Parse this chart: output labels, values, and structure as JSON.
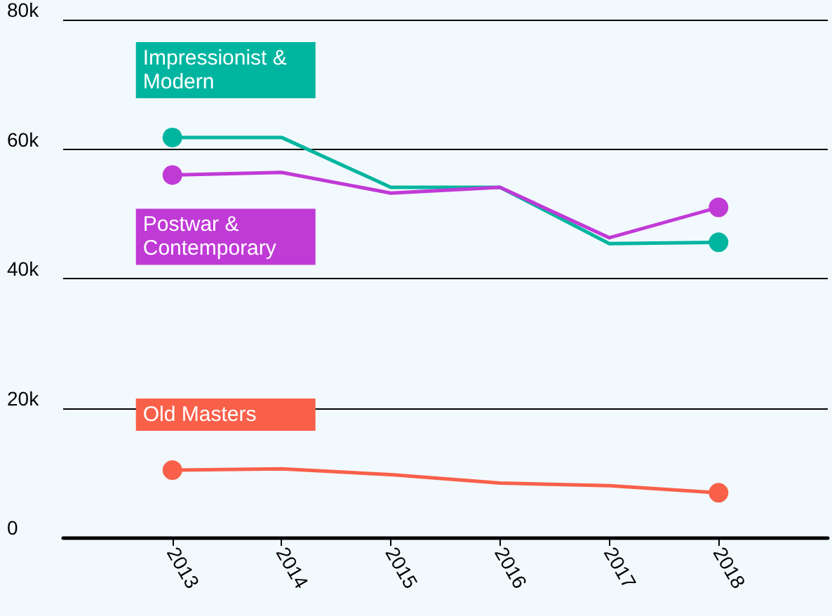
{
  "chart_data": {
    "type": "line",
    "x": [
      2013,
      2014,
      2015,
      2016,
      2017,
      2018
    ],
    "series": [
      {
        "color": "#00b5a0",
        "values": [
          61800,
          61800,
          54100,
          54100,
          45400,
          45600
        ]
      },
      {
        "color": "#c03ad6",
        "values": [
          56000,
          56400,
          53200,
          54100,
          46300,
          51000
        ]
      },
      {
        "color": "#f9604a",
        "values": [
          10400,
          10600,
          9700,
          8400,
          8000,
          6900
        ]
      },
      {
        "type": "scatter",
        "name": "Impressionist & Modern",
        "color": "#00b5a0",
        "values": [
          61800,
          null,
          null,
          null,
          null,
          45600
        ],
        "marker": "circle"
      },
      {
        "type": "scatter",
        "name": "Postwar & Contemporary",
        "color": "#c03ad6",
        "values": [
          56000,
          null,
          null,
          null,
          null,
          51000
        ],
        "marker": "circle"
      },
      {
        "type": "scatter",
        "name": "Old Masters",
        "color": "#f9604a",
        "values": [
          10400,
          null,
          null,
          null,
          null,
          6900
        ],
        "marker": "circle"
      }
    ],
    "xlim": [
      2012,
      2019
    ],
    "xticks": [
      2013,
      2014,
      2015,
      2016,
      2017,
      2018
    ],
    "ylim": [
      0,
      80000
    ],
    "yticks": [
      {
        "value": 0,
        "label": "0"
      },
      {
        "value": 20000,
        "label": "20k"
      },
      {
        "value": 40000,
        "label": "40k"
      },
      {
        "value": 60000,
        "label": "60k"
      },
      {
        "value": 80000,
        "label": "80k"
      }
    ],
    "grid": "y",
    "legend": false
  }
}
